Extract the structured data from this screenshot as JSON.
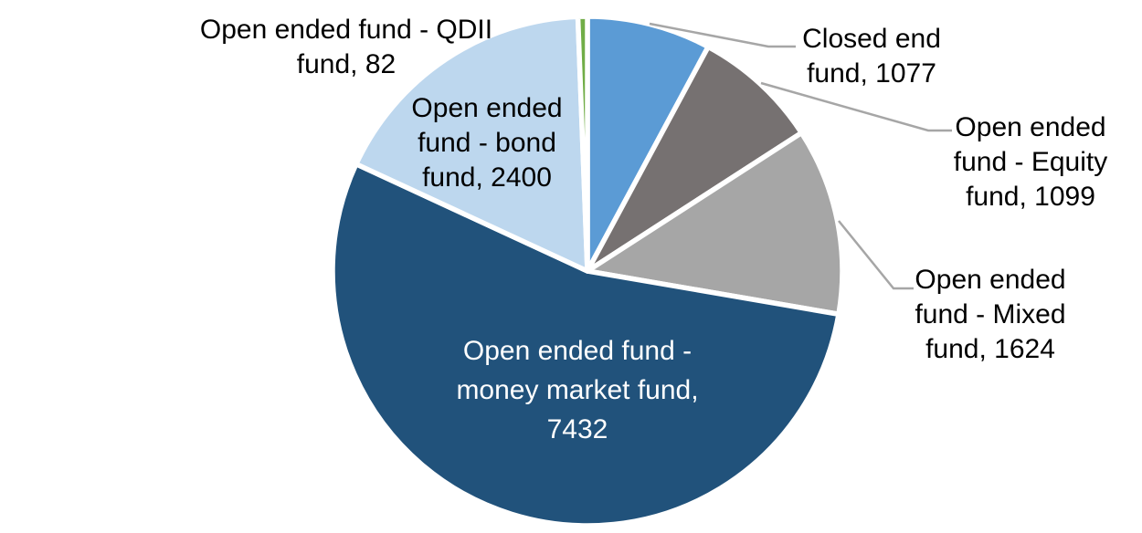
{
  "chart_data": {
    "type": "pie",
    "title": "",
    "start_angle_deg": 0,
    "direction": "clockwise",
    "total": 13714,
    "background_color": "#FFFFFF",
    "slice_border_color": "#FFFFFF",
    "leader_line_color": "#A6A6A6",
    "legend": "none",
    "slices": [
      {
        "label": "Closed end fund",
        "value": 1077,
        "color": "#5B9BD5",
        "label_lines": [
          "Closed end",
          "fund, 1077"
        ],
        "label_text_color": "#000000",
        "label_position": "outside-right",
        "has_leader_line": true
      },
      {
        "label": "Open ended fund - Equity fund",
        "value": 1099,
        "color": "#767171",
        "label_lines": [
          "Open ended",
          "fund - Equity",
          "fund, 1099"
        ],
        "label_text_color": "#000000",
        "label_position": "outside-right",
        "has_leader_line": true
      },
      {
        "label": "Open ended fund - Mixed fund",
        "value": 1624,
        "color": "#A6A6A6",
        "label_lines": [
          "Open ended",
          "fund - Mixed",
          "fund, 1624"
        ],
        "label_text_color": "#000000",
        "label_position": "outside-right",
        "has_leader_line": true
      },
      {
        "label": "Open ended fund - money market fund",
        "value": 7432,
        "color": "#21527B",
        "label_lines": [
          "Open ended fund -",
          "money market fund,",
          "7432"
        ],
        "label_text_color": "#FFFFFF",
        "label_position": "inside",
        "has_leader_line": false
      },
      {
        "label": "Open ended fund - bond fund",
        "value": 2400,
        "color": "#BDD7EE",
        "label_lines": [
          "Open ended",
          "fund - bond",
          "fund, 2400"
        ],
        "label_text_color": "#000000",
        "label_position": "inside",
        "has_leader_line": false
      },
      {
        "label": "Open ended fund - QDII fund",
        "value": 82,
        "color": "#70AD47",
        "label_lines": [
          "Open ended fund - QDII",
          "fund, 82"
        ],
        "label_text_color": "#000000",
        "label_position": "outside-left",
        "has_leader_line": false
      }
    ]
  }
}
